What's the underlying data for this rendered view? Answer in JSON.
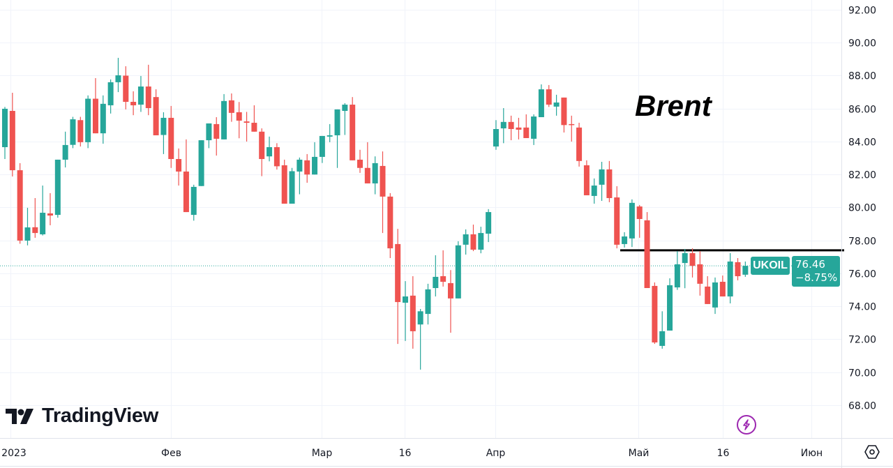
{
  "annotation": "Brent",
  "logo": {
    "text": "TradingView"
  },
  "symbol": {
    "name": "UKOIL",
    "last_price": "76.46",
    "change": "−8.75%"
  },
  "colors": {
    "up": "#26a69a",
    "down": "#ef5350",
    "label_bg": "#26a69a",
    "level_line": "#000000",
    "bolt": "#9c27b0"
  },
  "icons": {
    "bolt": "lightning-icon",
    "settings": "gear-icon"
  },
  "chart_data": {
    "type": "candlestick",
    "title": "Brent",
    "symbol": "UKOIL",
    "ylim": [
      66.01,
      92.59
    ],
    "y_ticks": [
      "92.00",
      "90.00",
      "88.00",
      "86.00",
      "84.00",
      "82.00",
      "80.00",
      "78.00",
      "76.00",
      "74.00",
      "72.00",
      "70.00",
      "68.00"
    ],
    "x_ticks": [
      {
        "label": "2023",
        "index": 0.7
      },
      {
        "label": "Фев",
        "index": 22
      },
      {
        "label": "Мар",
        "index": 41.9
      },
      {
        "label": "16",
        "index": 52.9
      },
      {
        "label": "Апр",
        "index": 64.9
      },
      {
        "label": "Май",
        "index": 83.8
      },
      {
        "label": "16",
        "index": 95
      },
      {
        "label": "Июн",
        "index": 106.7
      }
    ],
    "horizontal_level": 77.4,
    "last_price": 76.46,
    "grid": true,
    "ohlc": [
      [
        83.66,
        86.1,
        82.94,
        85.99
      ],
      [
        85.86,
        86.96,
        81.88,
        82.26
      ],
      [
        82.26,
        82.69,
        77.8,
        77.99
      ],
      [
        77.99,
        79.98,
        77.7,
        78.79
      ],
      [
        78.8,
        80.57,
        78.16,
        78.45
      ],
      [
        78.37,
        81.33,
        78.3,
        79.68
      ],
      [
        79.64,
        80.87,
        78.92,
        79.51
      ],
      [
        79.55,
        82.9,
        79.38,
        82.9
      ],
      [
        82.9,
        84.6,
        82.43,
        83.79
      ],
      [
        83.8,
        85.5,
        83.6,
        85.35
      ],
      [
        85.3,
        85.5,
        83.7,
        83.96
      ],
      [
        83.96,
        86.8,
        83.6,
        86.6
      ],
      [
        86.6,
        87.85,
        84.5,
        84.5
      ],
      [
        84.5,
        86.8,
        83.87,
        86.29
      ],
      [
        86.2,
        87.77,
        85.7,
        87.6
      ],
      [
        87.6,
        89.08,
        87.0,
        88.02
      ],
      [
        88.0,
        88.57,
        85.95,
        86.41
      ],
      [
        86.41,
        87.05,
        85.6,
        86.2
      ],
      [
        86.24,
        87.98,
        85.8,
        87.34
      ],
      [
        87.34,
        88.66,
        85.6,
        86.03
      ],
      [
        86.7,
        87.17,
        84.38,
        84.38
      ],
      [
        84.4,
        85.78,
        83.24,
        85.44
      ],
      [
        85.44,
        86.16,
        82.4,
        82.94
      ],
      [
        82.94,
        83.58,
        81.33,
        82.18
      ],
      [
        82.18,
        84.13,
        79.72,
        79.72
      ],
      [
        79.55,
        81.38,
        79.2,
        81.25
      ],
      [
        81.3,
        84.08,
        81.3,
        84.08
      ],
      [
        84.08,
        85.1,
        83.6,
        85.1
      ],
      [
        85.06,
        85.48,
        83.15,
        84.17
      ],
      [
        84.13,
        86.88,
        84.13,
        86.46
      ],
      [
        86.5,
        86.92,
        85.2,
        85.74
      ],
      [
        85.78,
        86.4,
        84.2,
        85.27
      ],
      [
        85.22,
        85.8,
        84.0,
        85.14
      ],
      [
        85.14,
        86.2,
        84.6,
        84.6
      ],
      [
        84.6,
        84.8,
        81.9,
        82.94
      ],
      [
        83.1,
        84.3,
        82.8,
        83.66
      ],
      [
        83.66,
        83.9,
        82.3,
        82.5
      ],
      [
        82.56,
        82.9,
        80.23,
        80.23
      ],
      [
        80.23,
        82.4,
        80.23,
        82.2
      ],
      [
        82.18,
        83.03,
        80.8,
        82.9
      ],
      [
        82.86,
        83.24,
        81.5,
        82.0
      ],
      [
        82.0,
        83.96,
        82.0,
        83.07
      ],
      [
        83.07,
        84.34,
        82.7,
        84.34
      ],
      [
        84.3,
        85.06,
        83.96,
        84.38
      ],
      [
        84.38,
        85.95,
        82.4,
        85.95
      ],
      [
        85.86,
        86.33,
        84.4,
        86.24
      ],
      [
        86.24,
        86.7,
        82.86,
        82.86
      ],
      [
        82.9,
        83.5,
        82.1,
        82.4
      ],
      [
        82.4,
        83.96,
        81.46,
        81.46
      ],
      [
        81.46,
        83.1,
        80.8,
        82.69
      ],
      [
        82.52,
        83.4,
        78.45,
        80.66
      ],
      [
        80.66,
        80.87,
        76.93,
        77.52
      ],
      [
        77.78,
        78.7,
        71.72,
        74.26
      ],
      [
        74.22,
        75.53,
        71.9,
        74.6
      ],
      [
        74.65,
        75.83,
        71.43,
        72.49
      ],
      [
        72.9,
        73.84,
        70.16,
        73.7
      ],
      [
        73.54,
        75.37,
        72.9,
        75.03
      ],
      [
        75.11,
        77.1,
        74.6,
        75.79
      ],
      [
        75.83,
        77.4,
        75.2,
        75.49
      ],
      [
        75.41,
        76.2,
        72.4,
        74.48
      ],
      [
        74.48,
        77.95,
        74.48,
        77.7
      ],
      [
        77.74,
        78.67,
        77.14,
        78.37
      ],
      [
        78.37,
        78.96,
        77.35,
        77.44
      ],
      [
        77.44,
        78.83,
        77.22,
        78.45
      ],
      [
        78.41,
        79.9,
        77.9,
        79.72
      ],
      [
        83.7,
        85.3,
        83.5,
        84.76
      ],
      [
        84.8,
        86.03,
        83.9,
        85.19
      ],
      [
        85.19,
        85.57,
        84.08,
        84.76
      ],
      [
        84.85,
        85.44,
        84.13,
        84.72
      ],
      [
        84.85,
        85.65,
        84.21,
        84.21
      ],
      [
        84.17,
        85.65,
        83.79,
        85.52
      ],
      [
        85.48,
        87.47,
        85.48,
        87.17
      ],
      [
        87.17,
        87.43,
        86.1,
        86.24
      ],
      [
        86.12,
        86.84,
        85.57,
        86.37
      ],
      [
        86.67,
        86.67,
        84.55,
        85.0
      ],
      [
        85.06,
        85.57,
        84.0,
        85.04
      ],
      [
        84.85,
        85.14,
        82.48,
        82.82
      ],
      [
        82.56,
        82.86,
        80.74,
        80.74
      ],
      [
        80.7,
        81.76,
        80.23,
        81.33
      ],
      [
        81.38,
        82.77,
        80.4,
        82.31
      ],
      [
        82.31,
        82.82,
        80.32,
        80.57
      ],
      [
        80.61,
        81.29,
        77.52,
        77.74
      ],
      [
        77.78,
        78.5,
        77.57,
        78.24
      ],
      [
        78.12,
        80.49,
        77.6,
        80.28
      ],
      [
        80.06,
        80.15,
        78.16,
        79.3
      ],
      [
        79.22,
        79.72,
        75.11,
        75.11
      ],
      [
        75.24,
        75.45,
        71.72,
        71.81
      ],
      [
        71.6,
        73.7,
        71.43,
        72.49
      ],
      [
        72.53,
        75.7,
        72.53,
        75.28
      ],
      [
        75.15,
        77.35,
        75.0,
        76.55
      ],
      [
        76.63,
        77.48,
        75.1,
        77.23
      ],
      [
        77.23,
        77.52,
        75.75,
        76.46
      ],
      [
        76.55,
        77.35,
        74.65,
        75.37
      ],
      [
        75.2,
        75.83,
        74.14,
        74.14
      ],
      [
        73.93,
        75.75,
        73.54,
        75.45
      ],
      [
        75.49,
        75.87,
        74.6,
        74.6
      ],
      [
        74.6,
        77.23,
        74.18,
        76.72
      ],
      [
        76.68,
        76.93,
        75.58,
        75.83
      ],
      [
        75.92,
        76.72,
        75.79,
        76.46
      ]
    ]
  }
}
